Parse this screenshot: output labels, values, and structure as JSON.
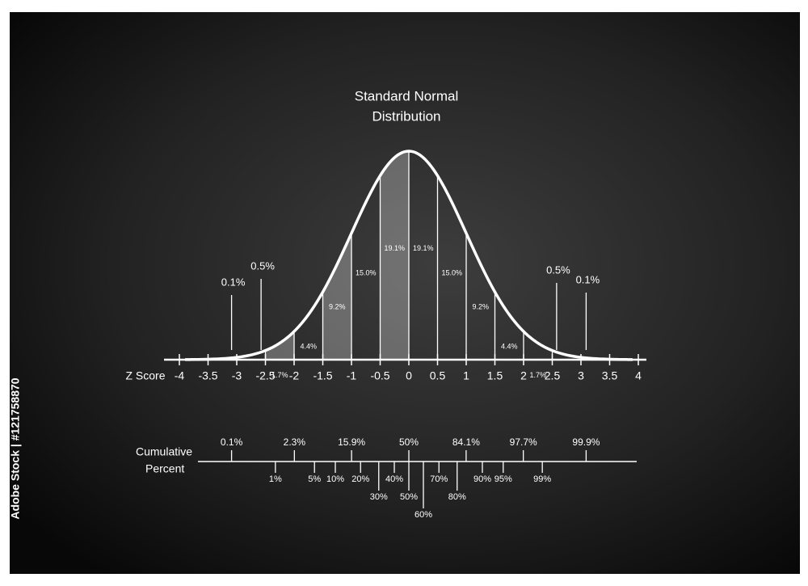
{
  "title": [
    "Standard Normal",
    "Distribution"
  ],
  "side_caption": "Adobe Stock | #121758870",
  "z_axis": {
    "label": "Z Score",
    "ticks": [
      -4,
      -3.5,
      -3,
      -2.5,
      -2,
      -1.5,
      -1,
      -0.5,
      0,
      0.5,
      1,
      1.5,
      2,
      2.5,
      3,
      3.5,
      4
    ]
  },
  "segments": [
    {
      "value": 1.7,
      "label": "1.7%"
    },
    {
      "value": 4.4,
      "label": "4.4%"
    },
    {
      "value": 9.2,
      "label": "9.2%"
    },
    {
      "value": 15.0,
      "label": "15.0%"
    },
    {
      "value": 19.1,
      "label": "19.1%"
    },
    {
      "value": 19.1,
      "label": "19.1%"
    },
    {
      "value": 15.0,
      "label": "15.0%"
    },
    {
      "value": 9.2,
      "label": "9.2%"
    },
    {
      "value": 4.4,
      "label": "4.4%"
    },
    {
      "value": 1.7,
      "label": "1.7%"
    }
  ],
  "left_tails": [
    {
      "value": 0.1,
      "label": "0.1%"
    },
    {
      "value": 0.5,
      "label": "0.5%"
    }
  ],
  "right_tails": [
    {
      "value": 0.5,
      "label": "0.5%"
    },
    {
      "value": 0.1,
      "label": "0.1%"
    }
  ],
  "cumulative": {
    "label": [
      "Cumulative",
      "Percent"
    ],
    "upper": [
      {
        "value": 0.1,
        "label": "0.1%"
      },
      {
        "value": 2.3,
        "label": "2.3%"
      },
      {
        "value": 15.9,
        "label": "15.9%"
      },
      {
        "value": 50,
        "label": "50%"
      },
      {
        "value": 84.1,
        "label": "84.1%"
      },
      {
        "value": 97.7,
        "label": "97.7%"
      },
      {
        "value": 99.9,
        "label": "99.9%"
      }
    ],
    "lower": [
      {
        "value": 1,
        "label": "1%"
      },
      {
        "value": 5,
        "label": "5%"
      },
      {
        "value": 10,
        "label": "10%"
      },
      {
        "value": 20,
        "label": "20%"
      },
      {
        "value": 30,
        "label": "30%"
      },
      {
        "value": 40,
        "label": "40%"
      },
      {
        "value": 50,
        "label": "50%"
      },
      {
        "value": 60,
        "label": "60%"
      },
      {
        "value": 70,
        "label": "70%"
      },
      {
        "value": 80,
        "label": "80%"
      },
      {
        "value": 90,
        "label": "90%"
      },
      {
        "value": 95,
        "label": "95%"
      },
      {
        "value": 99,
        "label": "99%"
      }
    ]
  }
}
